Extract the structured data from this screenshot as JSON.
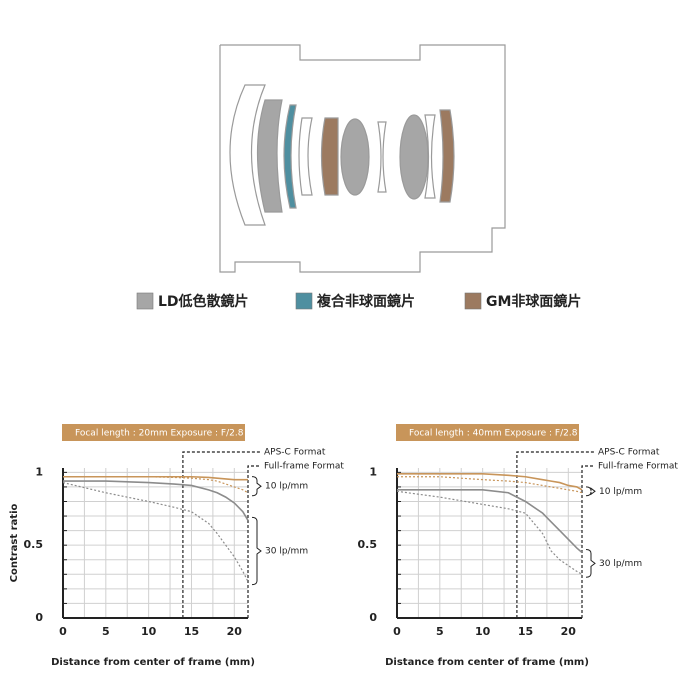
{
  "diagram": {
    "legend": [
      {
        "label": "LD低色散鏡片",
        "color": "#a6a6a6"
      },
      {
        "label": "複合非球面鏡片",
        "color": "#4f8fa0"
      },
      {
        "label": "GM非球面鏡片",
        "color": "#9c7a60"
      }
    ]
  },
  "chart_data": [
    {
      "type": "line",
      "title": "Focal length : 20mm Exposure : F/2.8",
      "ylabel": "Contrast ratio",
      "xlabel": "Distance from center of frame (mm)",
      "xlim": [
        0,
        21.6
      ],
      "ylim": [
        0,
        1.03
      ],
      "xticks": [
        0,
        5,
        10,
        15,
        20
      ],
      "yticks": [
        0,
        0.5,
        1
      ],
      "xgrid": [
        2.5,
        5,
        7.5,
        10,
        12.5,
        15,
        17.5,
        20
      ],
      "ygrid": [
        0.1,
        0.2,
        0.3,
        0.4,
        0.5,
        0.6,
        0.7,
        0.8,
        0.9,
        1
      ],
      "groups": [
        "10 lp/mm",
        "30 lp/mm"
      ],
      "vlines": [
        {
          "x": 14,
          "label": "APS-C Format"
        },
        {
          "x": 21.6,
          "label": "Full-frame Format"
        }
      ],
      "x": [
        0,
        5,
        10,
        13,
        15,
        17,
        18,
        19,
        20,
        21,
        21.6
      ],
      "series": [
        {
          "group": 0,
          "dashed": false,
          "color": "#c8955a",
          "values": [
            0.97,
            0.97,
            0.97,
            0.97,
            0.97,
            0.965,
            0.96,
            0.955,
            0.95,
            0.95,
            0.95
          ]
        },
        {
          "group": 0,
          "dashed": true,
          "color": "#c8955a",
          "values": [
            0.97,
            0.97,
            0.97,
            0.965,
            0.96,
            0.95,
            0.94,
            0.92,
            0.9,
            0.88,
            0.86
          ]
        },
        {
          "group": 1,
          "dashed": false,
          "color": "#8c8c8c",
          "values": [
            0.94,
            0.94,
            0.93,
            0.92,
            0.91,
            0.88,
            0.86,
            0.83,
            0.79,
            0.73,
            0.67
          ]
        },
        {
          "group": 1,
          "dashed": true,
          "color": "#8c8c8c",
          "values": [
            0.93,
            0.86,
            0.8,
            0.76,
            0.73,
            0.65,
            0.58,
            0.5,
            0.42,
            0.32,
            0.25
          ]
        }
      ]
    },
    {
      "type": "line",
      "title": "Focal length : 40mm Exposure : F/2.8",
      "xlabel": "Distance from center of frame (mm)",
      "xlim": [
        0,
        21.6
      ],
      "ylim": [
        0,
        1.03
      ],
      "xticks": [
        0,
        5,
        10,
        15,
        20
      ],
      "yticks": [
        0,
        0.5,
        1
      ],
      "xgrid": [
        2.5,
        5,
        7.5,
        10,
        12.5,
        15,
        17.5,
        20
      ],
      "ygrid": [
        0.1,
        0.2,
        0.3,
        0.4,
        0.5,
        0.6,
        0.7,
        0.8,
        0.9,
        1
      ],
      "groups": [
        "10 lp/mm",
        "30 lp/mm"
      ],
      "vlines": [
        {
          "x": 14,
          "label": "APS-C Format"
        },
        {
          "x": 21.6,
          "label": "Full-frame Format"
        }
      ],
      "x": [
        0,
        5,
        10,
        13,
        15,
        17,
        18,
        19,
        20,
        21,
        21.6
      ],
      "series": [
        {
          "group": 0,
          "dashed": false,
          "color": "#c8955a",
          "values": [
            0.99,
            0.99,
            0.99,
            0.98,
            0.97,
            0.95,
            0.94,
            0.93,
            0.91,
            0.9,
            0.88
          ]
        },
        {
          "group": 0,
          "dashed": true,
          "color": "#c8955a",
          "values": [
            0.97,
            0.97,
            0.95,
            0.94,
            0.93,
            0.91,
            0.9,
            0.89,
            0.88,
            0.87,
            0.86
          ]
        },
        {
          "group": 1,
          "dashed": false,
          "color": "#8c8c8c",
          "values": [
            0.88,
            0.88,
            0.88,
            0.86,
            0.8,
            0.72,
            0.66,
            0.6,
            0.54,
            0.48,
            0.45
          ]
        },
        {
          "group": 1,
          "dashed": true,
          "color": "#8c8c8c",
          "values": [
            0.87,
            0.83,
            0.78,
            0.75,
            0.72,
            0.58,
            0.46,
            0.4,
            0.36,
            0.32,
            0.3
          ]
        }
      ]
    }
  ]
}
